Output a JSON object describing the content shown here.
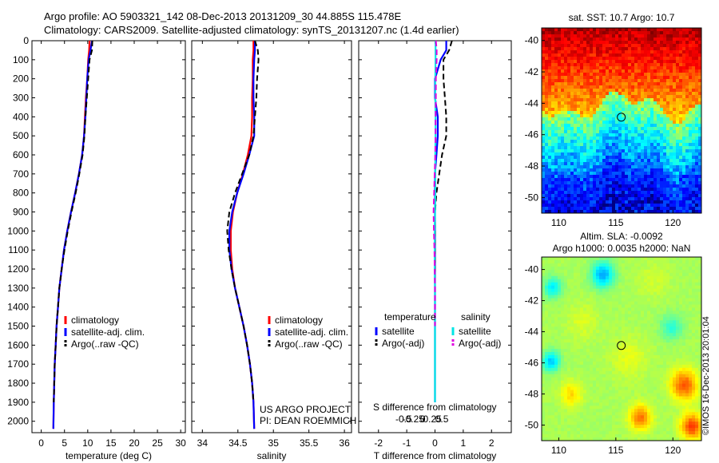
{
  "header": {
    "line1": "Argo profile: AO 5903321_142 08-Dec-2013 20131209_30 44.885S 115.478E",
    "line2": "Climatology: CARS2009. Satellite-adjusted climatology: synTS_20131207.nc (1.4d earlier)"
  },
  "timestamp": "©IMOS 16-Dec-2013 20:01:04",
  "colors": {
    "climatology": "#ff0000",
    "satellite": "#0000ff",
    "argo": "#000000",
    "sal_satellite": "#00e5e5",
    "sal_argo": "#e000e0"
  },
  "chart_data": [
    {
      "type": "line",
      "id": "temperature",
      "xlabel": "temperature (deg C)",
      "ylabel": "",
      "xlim": [
        -2,
        31
      ],
      "ylim": [
        2060,
        0
      ],
      "xticks": [
        0,
        5,
        10,
        15,
        20,
        25,
        30
      ],
      "yticks": [
        0,
        100,
        200,
        300,
        400,
        500,
        600,
        700,
        800,
        900,
        1000,
        1100,
        1200,
        1300,
        1400,
        1500,
        1600,
        1700,
        1800,
        1900,
        2000
      ],
      "legend": {
        "placement": "lower-right",
        "entries": [
          "climatology",
          "satellite-adj. clim.",
          "Argo(..raw -QC)"
        ]
      },
      "series": [
        {
          "name": "climatology",
          "color": "#ff0000",
          "style": "solid",
          "x": [
            10.4,
            10.3,
            10.1,
            9.9,
            9.6,
            9.4,
            9.2,
            8.8,
            8.1,
            7.3,
            6.4,
            5.6,
            4.9,
            4.4,
            3.9,
            3.6,
            3.3,
            3.1,
            2.9,
            2.8,
            2.7,
            2.6
          ],
          "y": [
            0,
            50,
            100,
            200,
            300,
            400,
            500,
            600,
            700,
            800,
            900,
            1000,
            1100,
            1200,
            1300,
            1400,
            1500,
            1600,
            1700,
            1800,
            1900,
            2040
          ]
        },
        {
          "name": "satellite-adj. clim.",
          "color": "#0000ff",
          "style": "solid",
          "x": [
            10.9,
            10.6,
            10.2,
            9.9,
            9.7,
            9.5,
            9.2,
            8.8,
            8.1,
            7.3,
            6.4,
            5.6,
            4.9,
            4.4,
            3.9,
            3.6,
            3.3,
            3.1,
            2.9,
            2.8,
            2.7,
            2.6
          ],
          "y": [
            0,
            50,
            100,
            200,
            300,
            400,
            500,
            600,
            700,
            800,
            900,
            1000,
            1100,
            1200,
            1300,
            1400,
            1500,
            1600,
            1700,
            1800,
            1900,
            2040
          ]
        },
        {
          "name": "Argo(..raw -QC)",
          "color": "#000000",
          "style": "dashed",
          "x": [
            11.0,
            10.9,
            10.4,
            10.1,
            9.8,
            9.5,
            9.3,
            8.9,
            8.2,
            7.4,
            6.5,
            5.7,
            5.0,
            4.4,
            3.9,
            3.6,
            3.3,
            3.1,
            2.9,
            2.8,
            2.7
          ],
          "y": [
            0,
            50,
            100,
            200,
            300,
            400,
            500,
            600,
            700,
            800,
            900,
            1000,
            1100,
            1200,
            1300,
            1400,
            1500,
            1600,
            1700,
            1800,
            1900
          ]
        }
      ]
    },
    {
      "type": "line",
      "id": "salinity",
      "xlabel": "salinity",
      "ylabel": "",
      "xlim": [
        33.85,
        36.1
      ],
      "ylim": [
        2060,
        0
      ],
      "xticks": [
        34,
        34.5,
        35,
        35.5,
        36
      ],
      "legend": {
        "placement": "lower-right",
        "entries": [
          "climatology",
          "satellite-adj. clim.",
          "Argo(..raw -QC)"
        ]
      },
      "annotation": [
        "US ARGO PROJECT",
        "PI: DEAN ROEMMICH"
      ],
      "series": [
        {
          "name": "climatology",
          "color": "#ff0000",
          "style": "solid",
          "x": [
            34.72,
            34.72,
            34.71,
            34.71,
            34.7,
            34.7,
            34.69,
            34.64,
            34.57,
            34.49,
            34.43,
            34.4,
            34.4,
            34.42,
            34.46,
            34.52,
            34.58,
            34.63,
            34.67,
            34.7,
            34.72,
            34.73
          ],
          "y": [
            0,
            50,
            100,
            200,
            300,
            400,
            500,
            600,
            700,
            800,
            900,
            1000,
            1100,
            1200,
            1300,
            1400,
            1500,
            1600,
            1700,
            1800,
            1900,
            2040
          ]
        },
        {
          "name": "satellite-adj. clim.",
          "color": "#0000ff",
          "style": "solid",
          "x": [
            34.74,
            34.74,
            34.73,
            34.72,
            34.72,
            34.73,
            34.73,
            34.66,
            34.58,
            34.49,
            34.42,
            34.38,
            34.38,
            34.41,
            34.46,
            34.52,
            34.58,
            34.63,
            34.67,
            34.7,
            34.72,
            34.73
          ],
          "y": [
            0,
            50,
            100,
            200,
            300,
            400,
            500,
            600,
            700,
            800,
            900,
            1000,
            1100,
            1200,
            1300,
            1400,
            1500,
            1600,
            1700,
            1800,
            1900,
            2040
          ]
        },
        {
          "name": "Argo(..raw -QC)",
          "color": "#000000",
          "style": "dashed",
          "x": [
            34.74,
            34.78,
            34.79,
            34.77,
            34.76,
            34.74,
            34.72,
            34.66,
            34.56,
            34.46,
            34.38,
            34.35,
            34.37,
            34.41,
            34.46,
            34.52,
            34.58,
            34.63,
            34.67,
            34.7,
            34.72
          ],
          "y": [
            0,
            50,
            100,
            200,
            300,
            400,
            500,
            600,
            700,
            800,
            900,
            1000,
            1100,
            1200,
            1300,
            1400,
            1500,
            1600,
            1700,
            1800,
            1900
          ]
        }
      ]
    },
    {
      "type": "line",
      "id": "difference",
      "xlabel": "T difference from climatology",
      "xlabel_top": "S difference from climatology",
      "xlim": [
        -2.7,
        2.7
      ],
      "ylim": [
        2060,
        0
      ],
      "xticks": [
        -2,
        -1,
        0,
        1,
        2
      ],
      "xtick_labels": [
        "-2",
        "-1",
        "0",
        "1",
        "2"
      ],
      "sticks": [
        -0.5,
        -0.25,
        0,
        0.25,
        0.5
      ],
      "stick_labels": [
        "-0.5",
        "-0.25",
        "0",
        "0.25",
        "0.5"
      ],
      "legend": {
        "placement": "lower",
        "groups": [
          {
            "heading": "temperature",
            "entries": [
              "satellite",
              "Argo(-adj)"
            ]
          },
          {
            "heading": "salinity",
            "entries": [
              "satellite",
              "Argo(-adj)"
            ]
          }
        ]
      },
      "series": [
        {
          "name": "temperature satellite",
          "color": "#0000ff",
          "style": "solid",
          "x": [
            0.4,
            0.4,
            0.2,
            0.0,
            0.0,
            0.1,
            0.1,
            0.05,
            0.0,
            0.0,
            0.0,
            0.0,
            0.0,
            0.0,
            0.0,
            0.0,
            0.0,
            0.0,
            0.0,
            0.0,
            0.0
          ],
          "y": [
            0,
            50,
            100,
            200,
            300,
            400,
            500,
            600,
            700,
            800,
            900,
            1000,
            1100,
            1200,
            1300,
            1400,
            1500,
            1600,
            1700,
            1800,
            1900
          ]
        },
        {
          "name": "temperature Argo(-adj)",
          "color": "#000000",
          "style": "dashed",
          "x": [
            0.6,
            0.5,
            0.3,
            0.3,
            0.35,
            0.4,
            0.4,
            0.25,
            0.15,
            0.05,
            0.0,
            0.0,
            0.0,
            0.0,
            0.0,
            0.0,
            0.0
          ],
          "y": [
            0,
            50,
            100,
            200,
            300,
            400,
            500,
            600,
            700,
            800,
            900,
            1000,
            1100,
            1200,
            1300,
            1400,
            1500
          ]
        },
        {
          "name": "salinity satellite",
          "color": "#00e5e5",
          "style": "solid",
          "x": [
            0.02,
            0.02,
            0.02,
            0.01,
            0.01,
            0.02,
            0.02,
            0.01,
            0.01,
            0.01,
            0.0,
            -0.01,
            -0.01,
            -0.01,
            0.0,
            0.0,
            0.0,
            0.0,
            0.0,
            0.0,
            0.0
          ],
          "y": [
            0,
            50,
            100,
            200,
            300,
            400,
            500,
            600,
            700,
            800,
            900,
            1000,
            1100,
            1200,
            1300,
            1400,
            1500,
            1600,
            1700,
            1800,
            1900
          ]
        },
        {
          "name": "salinity Argo(-adj)",
          "color": "#e000e0",
          "style": "dashed",
          "x": [
            0.03,
            0.06,
            0.06,
            0.03,
            0.03,
            0.02,
            0.02,
            0.01,
            -0.01,
            -0.03,
            -0.05,
            -0.04,
            -0.02,
            -0.01,
            0.0,
            0.0,
            0.0
          ],
          "y": [
            0,
            50,
            100,
            200,
            300,
            400,
            500,
            600,
            700,
            800,
            900,
            1000,
            1100,
            1200,
            1300,
            1400,
            1500
          ]
        }
      ]
    },
    {
      "type": "heatmap",
      "id": "sst-map",
      "title": "sat. SST: 10.7 Argo: 10.7",
      "xlim": [
        108.5,
        122.5
      ],
      "ylim": [
        -51,
        -39.2
      ],
      "xticks": [
        110,
        115,
        120
      ],
      "yticks": [
        -40,
        -42,
        -44,
        -46,
        -48,
        -50
      ],
      "ytick_labels": [
        "-40",
        "-42",
        "-44",
        "-46",
        "-48",
        "-50"
      ],
      "marker": {
        "lon": 115.478,
        "lat": -44.885
      }
    },
    {
      "type": "heatmap",
      "id": "sla-map",
      "title": "Altim. SLA: -0.0092",
      "subtitle": "Argo h1000: 0.0035 h2000: NaN",
      "xlim": [
        108.5,
        122.5
      ],
      "ylim": [
        -51,
        -39.2
      ],
      "xticks": [
        110,
        115,
        120
      ],
      "yticks": [
        -40,
        -42,
        -44,
        -46,
        -48,
        -50
      ],
      "ytick_labels": [
        "-40",
        "-42",
        "-44",
        "-46",
        "-48",
        "-50"
      ],
      "marker": {
        "lon": 115.478,
        "lat": -44.885
      }
    }
  ]
}
